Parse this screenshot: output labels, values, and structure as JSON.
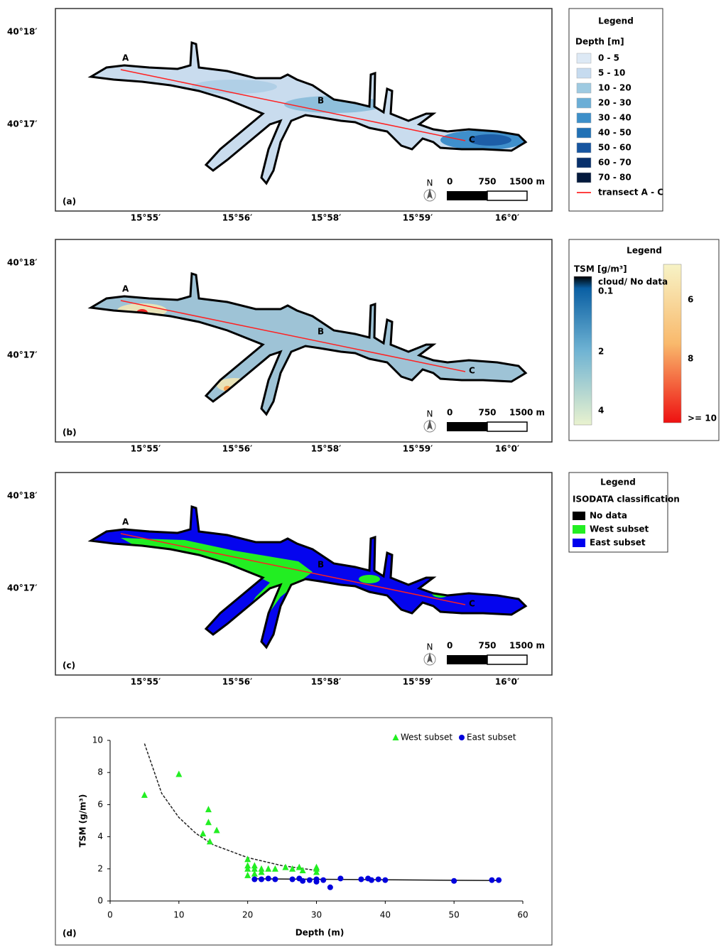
{
  "panels": [
    {
      "label": "(a)",
      "lat_labels": [
        "40°18′",
        "40°17′"
      ],
      "lon_labels": [
        "15°55′",
        "15°56′",
        "15°58′",
        "15°59′",
        "16°0′"
      ],
      "points": [
        "A",
        "B",
        "C"
      ],
      "scale": {
        "north": "N",
        "ticks": [
          "0",
          "750",
          "1500 m"
        ]
      },
      "legend": {
        "title": "Legend",
        "subtitle": "Depth [m]",
        "items": [
          {
            "label": "0 - 5",
            "color": "#dde9f5"
          },
          {
            "label": "5 - 10",
            "color": "#c6dbef"
          },
          {
            "label": "10 - 20",
            "color": "#9ecae1"
          },
          {
            "label": "20 - 30",
            "color": "#6baed6"
          },
          {
            "label": "30 - 40",
            "color": "#3d8fc9"
          },
          {
            "label": "40 - 50",
            "color": "#2171b5"
          },
          {
            "label": "50 - 60",
            "color": "#1655a0"
          },
          {
            "label": "60 - 70",
            "color": "#08306b"
          },
          {
            "label": "70 - 80",
            "color": "#041a3d"
          }
        ],
        "line_item": {
          "label": "transect A - C",
          "color": "#ff0000"
        }
      }
    },
    {
      "label": "(b)",
      "lat_labels": [
        "40°18′",
        "40°17′"
      ],
      "lon_labels": [
        "15°55′",
        "15°56′",
        "15°58′",
        "15°59′",
        "16°0′"
      ],
      "points": [
        "A",
        "B",
        "C"
      ],
      "scale": {
        "north": "N",
        "ticks": [
          "0",
          "750",
          "1500 m"
        ]
      },
      "legend": {
        "title": "Legend",
        "subtitle": "TSM [g/m³]",
        "labels_left": [
          "cloud/ No data",
          "0.1",
          "2",
          "4"
        ],
        "labels_right": [
          "6",
          "8",
          ">= 10"
        ]
      }
    },
    {
      "label": "(c)",
      "lat_labels": [
        "40°18′",
        "40°17′"
      ],
      "lon_labels": [
        "15°55′",
        "15°56′",
        "15°58′",
        "15°59′",
        "16°0′"
      ],
      "points": [
        "A",
        "B",
        "C"
      ],
      "scale": {
        "north": "N",
        "ticks": [
          "0",
          "750",
          "1500 m"
        ]
      },
      "legend": {
        "title": "Legend",
        "subtitle": "ISODATA classification",
        "items": [
          {
            "label": "No data",
            "color": "#000000"
          },
          {
            "label": "West subset",
            "color": "#22ee22"
          },
          {
            "label": "East subset",
            "color": "#0000ee"
          }
        ]
      }
    }
  ],
  "chart_data": {
    "type": "scatter",
    "panel_label": "(d)",
    "x_label": "Depth (m)",
    "y_label": "TSM (g/m³)",
    "xlim": [
      0,
      60
    ],
    "xticks": [
      0,
      10,
      20,
      30,
      40,
      50,
      60
    ],
    "ylim": [
      0,
      10
    ],
    "yticks": [
      0,
      2,
      4,
      6,
      8,
      10
    ],
    "series": [
      {
        "name": "West subset",
        "color": "#22ee22",
        "marker": "triangle",
        "x": [
          5,
          10,
          13.5,
          14.3,
          14.3,
          14.5,
          15.5,
          20,
          20,
          20,
          20,
          21,
          21,
          21,
          22,
          22,
          23,
          24,
          25.5,
          26.5,
          27.5,
          28,
          30,
          30,
          30
        ],
        "values": [
          6.6,
          7.9,
          4.2,
          5.7,
          4.9,
          3.7,
          4.4,
          2.6,
          2.2,
          2.0,
          1.6,
          2.2,
          2.0,
          1.7,
          2.0,
          1.8,
          2.0,
          2.0,
          2.1,
          2.0,
          2.1,
          1.9,
          2.0,
          1.8,
          2.1
        ]
      },
      {
        "name": "East subset",
        "color": "#0000dd",
        "marker": "circle",
        "x": [
          21,
          22,
          23,
          24,
          26.5,
          27.5,
          28,
          29,
          30,
          30,
          31,
          32,
          33.5,
          36.5,
          37.5,
          38,
          39,
          40,
          50,
          55.5,
          56.5
        ],
        "values": [
          1.35,
          1.35,
          1.4,
          1.35,
          1.35,
          1.4,
          1.25,
          1.3,
          1.35,
          1.2,
          1.3,
          0.85,
          1.4,
          1.35,
          1.4,
          1.3,
          1.35,
          1.3,
          1.25,
          1.3,
          1.3
        ]
      }
    ],
    "trend_lines": [
      {
        "color": "#222222",
        "dashed": true,
        "x": [
          5,
          7.5,
          10,
          12.5,
          15,
          20,
          25,
          30
        ],
        "values": [
          9.8,
          6.7,
          5.2,
          4.2,
          3.5,
          2.7,
          2.2,
          1.9
        ]
      },
      {
        "color": "#111111",
        "dashed": false,
        "x": [
          21,
          56.5
        ],
        "values": [
          1.38,
          1.27
        ]
      }
    ]
  }
}
